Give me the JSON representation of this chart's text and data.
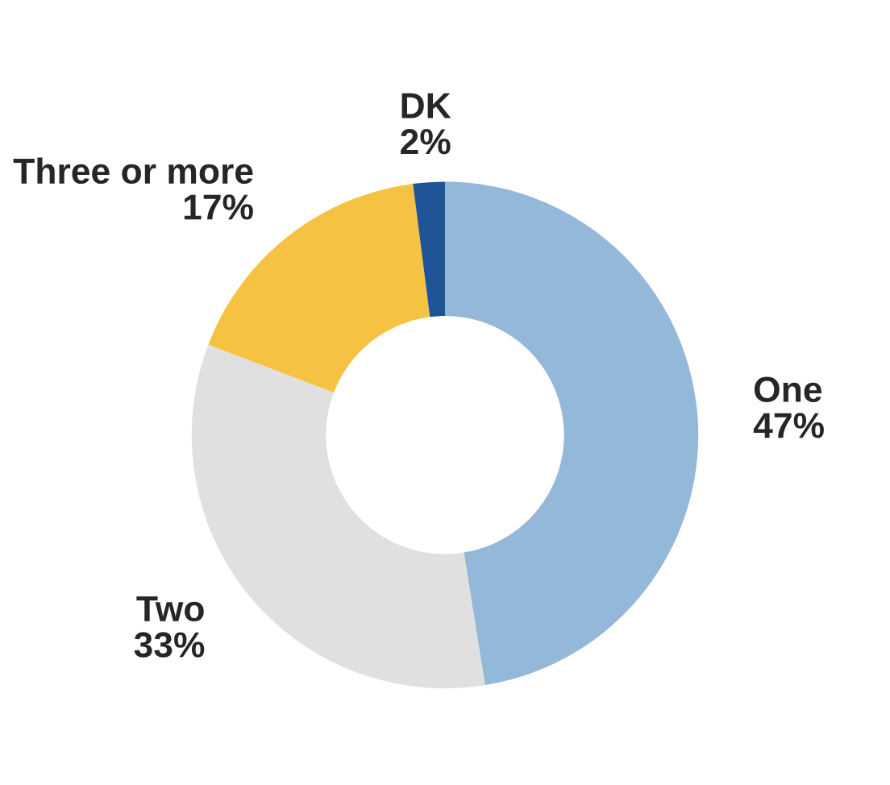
{
  "chart_data": {
    "type": "donut",
    "categories": [
      "One",
      "Two",
      "Three or more",
      "DK"
    ],
    "values": [
      47,
      33,
      17,
      2
    ],
    "value_labels": [
      "47%",
      "33%",
      "17%",
      "2%"
    ],
    "colors": [
      "#93b8d9",
      "#e0e0e0",
      "#f5c242",
      "#1f5597"
    ],
    "legend": false
  }
}
